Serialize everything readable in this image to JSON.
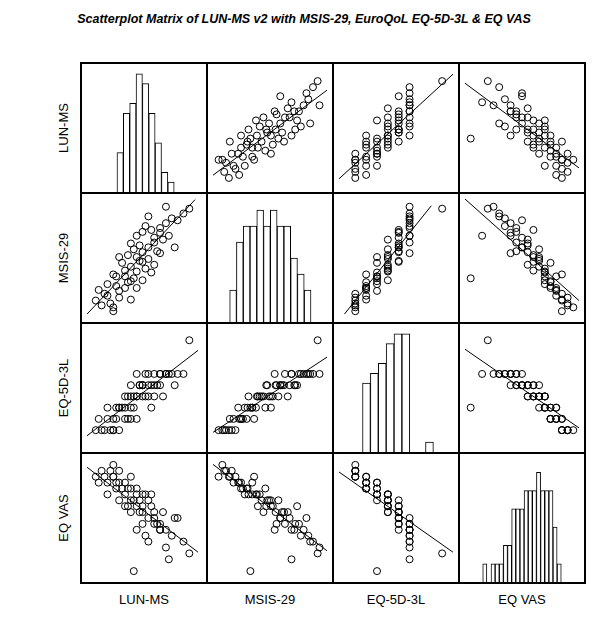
{
  "chart_data": {
    "type": "scatter_matrix",
    "title": "Scatterplot Matrix of LUN-MS v2 with MSIS-29, EuroQoL EQ-5D-3L & EQ VAS",
    "tick_labels": false,
    "marker": "circle",
    "color": "#000000",
    "variables": [
      {
        "name": "LUN-MS",
        "values": [
          10,
          8,
          12,
          14,
          15,
          16,
          18,
          20,
          20,
          22,
          22,
          24,
          24,
          26,
          26,
          28,
          28,
          30,
          30,
          32,
          34,
          36,
          38,
          40,
          12,
          14,
          16,
          18,
          19,
          21,
          23,
          25,
          27,
          29,
          31,
          33,
          35,
          17,
          21,
          23,
          25,
          27,
          19,
          15,
          11,
          13,
          9,
          22,
          24,
          26,
          20,
          18,
          30,
          16,
          28,
          14,
          22,
          32,
          24,
          20
        ],
        "lim": [
          5,
          44
        ],
        "bins": [
          7.5,
          11.5,
          15.5,
          19.5,
          23.5,
          27.5,
          31.5,
          35.5,
          39.5,
          43.5
        ],
        "counts": [
          4,
          8,
          9,
          12,
          11,
          8,
          5,
          2,
          1
        ],
        "count_lim": [
          0,
          13
        ]
      },
      {
        "name": "MSIS-29",
        "values": [
          40,
          45,
          50,
          38,
          60,
          55,
          70,
          65,
          80,
          75,
          90,
          85,
          95,
          100,
          88,
          110,
          105,
          115,
          120,
          125,
          130,
          128,
          135,
          140,
          62,
          72,
          48,
          58,
          92,
          68,
          102,
          78,
          118,
          96,
          108,
          112,
          100,
          84,
          98,
          86,
          122,
          74,
          64,
          70,
          52,
          42,
          56,
          112,
          66,
          132,
          104,
          76,
          94,
          90,
          82,
          34,
          58,
          142,
          116,
          46
        ],
        "lim": [
          28,
          150
        ],
        "bins": [
          29.5,
          39.5,
          49.5,
          59.5,
          69.5,
          79.5,
          89.5,
          99.5,
          109.5,
          119.5,
          129.5,
          139.5,
          149.5
        ],
        "counts": [
          2,
          5,
          6,
          6,
          7,
          6,
          7,
          6,
          6,
          4,
          3,
          2
        ],
        "count_lim": [
          0,
          8
        ]
      },
      {
        "name": "EQ-5D-3L",
        "values": [
          6,
          6,
          7,
          6,
          7,
          8,
          8,
          8,
          9,
          9,
          9,
          10,
          10,
          10,
          9,
          10,
          11,
          10,
          11,
          11,
          11,
          11,
          11,
          14,
          8,
          7,
          6,
          7,
          9,
          8,
          10,
          9,
          10,
          10,
          9,
          11,
          10,
          8,
          9,
          10,
          11,
          8,
          7,
          8,
          6,
          6,
          7,
          11,
          9,
          11,
          10,
          9,
          11,
          8,
          9,
          6,
          7,
          11,
          10,
          7
        ],
        "lim": [
          4.5,
          15
        ],
        "bins": [
          5.5,
          6.5,
          7.5,
          8.5,
          9.5,
          10.5,
          11.5,
          12.5,
          13.5,
          14.5
        ],
        "counts": [
          7,
          8,
          9,
          11,
          12,
          12,
          0,
          0,
          1
        ],
        "count_lim": [
          0,
          13
        ]
      },
      {
        "name": "EQ VAS",
        "values": [
          90,
          85,
          80,
          95,
          75,
          80,
          70,
          75,
          65,
          70,
          60,
          60,
          55,
          50,
          65,
          50,
          45,
          40,
          45,
          40,
          35,
          50,
          30,
          20,
          70,
          85,
          90,
          80,
          60,
          5,
          55,
          70,
          60,
          45,
          55,
          15,
          50,
          75,
          65,
          65,
          35,
          70,
          75,
          80,
          85,
          90,
          80,
          40,
          70,
          30,
          55,
          60,
          40,
          65,
          55,
          85,
          75,
          25,
          45,
          85
        ],
        "lim": [
          0,
          100
        ],
        "bins": [
          2.5,
          7.5,
          12.5,
          17.5,
          22.5,
          27.5,
          32.5,
          37.5,
          42.5,
          47.5,
          52.5,
          57.5,
          62.5,
          67.5,
          72.5,
          77.5,
          82.5,
          87.5,
          92.5,
          97.5
        ],
        "counts": [
          1,
          0,
          1,
          1,
          1,
          2,
          2,
          4,
          4,
          4,
          5,
          5,
          5,
          6,
          5,
          5,
          5,
          3,
          1
        ],
        "count_lim": [
          0,
          7
        ]
      }
    ],
    "fits": [
      {
        "x": "MSIS-29",
        "y": "LUN-MS",
        "x_values": [
          28,
          150
        ],
        "y_values": [
          8.9,
          37.0
        ]
      },
      {
        "x": "EQ-5D-3L",
        "y": "LUN-MS",
        "x_values": [
          4.5,
          15
        ],
        "y_values": [
          7.7,
          42.3
        ]
      },
      {
        "x": "EQ VAS",
        "y": "LUN-MS",
        "x_values": [
          0,
          100
        ],
        "y_values": [
          39.3,
          11.3
        ]
      },
      {
        "x": "LUN-MS",
        "y": "MSIS-29",
        "x_values": [
          5,
          42
        ],
        "y_values": [
          31,
          149.4
        ]
      },
      {
        "x": "EQ-5D-3L",
        "y": "MSIS-29",
        "x_values": [
          5,
          13
        ],
        "y_values": [
          31,
          143
        ]
      },
      {
        "x": "EQ VAS",
        "y": "MSIS-29",
        "x_values": [
          0,
          100
        ],
        "y_values": [
          150,
          45
        ]
      },
      {
        "x": "LUN-MS",
        "y": "EQ-5D-3L",
        "x_values": [
          5,
          43
        ],
        "y_values": [
          5.5,
          13.1
        ]
      },
      {
        "x": "MSIS-29",
        "y": "EQ-5D-3L",
        "x_values": [
          28,
          150
        ],
        "y_values": [
          5.8,
          12.5
        ]
      },
      {
        "x": "EQ VAS",
        "y": "EQ-5D-3L",
        "x_values": [
          0,
          100
        ],
        "y_values": [
          13.2,
          6.2
        ]
      },
      {
        "x": "LUN-MS",
        "y": "EQ VAS",
        "x_values": [
          5,
          43
        ],
        "y_values": [
          93,
          21
        ]
      },
      {
        "x": "MSIS-29",
        "y": "EQ VAS",
        "x_values": [
          28,
          150
        ],
        "y_values": [
          95.4,
          22.2
        ]
      },
      {
        "x": "EQ-5D-3L",
        "y": "EQ VAS",
        "x_values": [
          4.5,
          15
        ],
        "y_values": [
          89,
          21
        ]
      }
    ]
  }
}
